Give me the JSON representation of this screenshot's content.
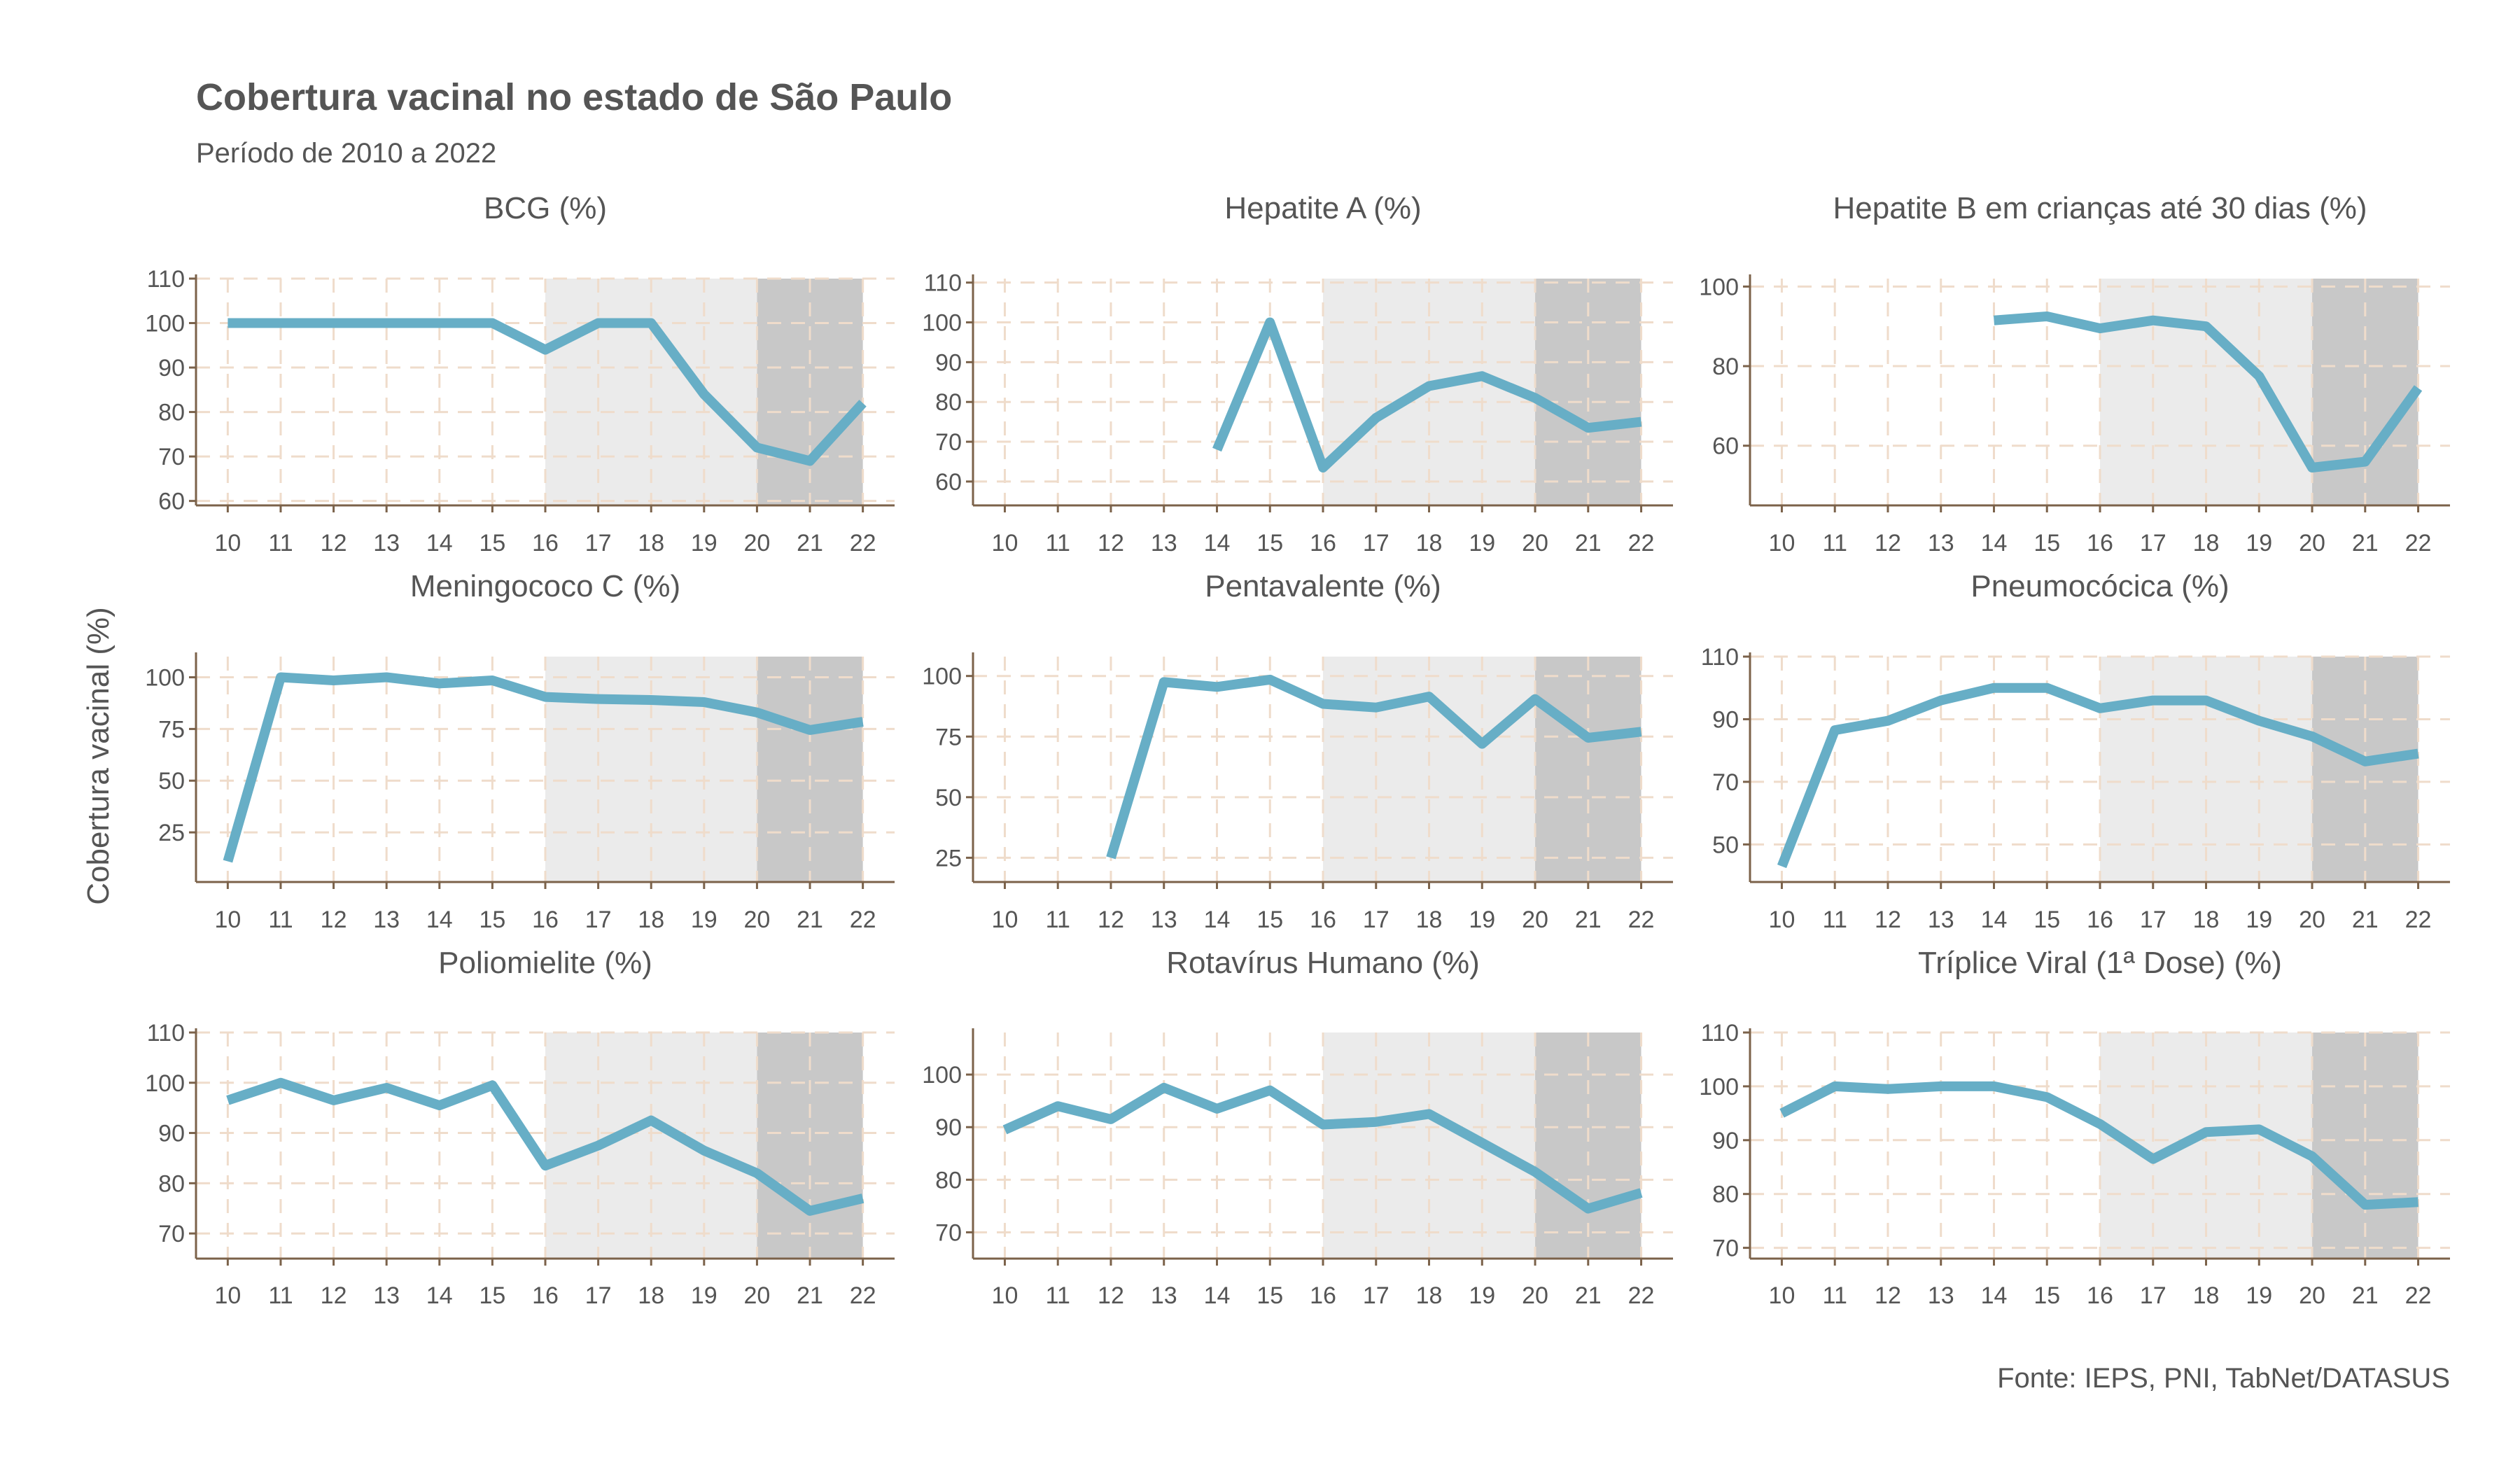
{
  "figure": {
    "title": "Cobertura vacinal no estado de São Paulo",
    "subtitle": "Período de 2010 a 2022",
    "ylabel": "Cobertura vacinal (%)",
    "caption": "Fonte: IEPS, PNI, TabNet/DATASUS"
  },
  "colors": {
    "line": "#67AEC6",
    "shade_light": "#EBEBEB",
    "shade_dark": "#C8C8C8",
    "grid": "#EFDCCB",
    "axis": "#7B624A",
    "text": "#555555"
  },
  "chart_data": [
    {
      "type": "line",
      "title": "BCG (%)",
      "x": [
        10,
        11,
        12,
        13,
        14,
        15,
        16,
        17,
        18,
        19,
        20,
        21,
        22
      ],
      "xticks": [
        "10",
        "11",
        "12",
        "13",
        "14",
        "15",
        "16",
        "17",
        "18",
        "19",
        "20",
        "21",
        "22"
      ],
      "values": [
        100,
        100,
        100,
        100,
        100,
        100,
        94,
        100,
        100,
        84,
        72,
        69,
        82
      ],
      "ylim": [
        59,
        110
      ],
      "yticks": [
        60,
        70,
        80,
        90,
        100,
        110
      ],
      "shaded": [
        {
          "from": 16,
          "to": 20,
          "tone": "light"
        },
        {
          "from": 20,
          "to": 22,
          "tone": "dark"
        }
      ]
    },
    {
      "type": "line",
      "title": "Hepatite A (%)",
      "x": [
        10,
        11,
        12,
        13,
        14,
        15,
        16,
        17,
        18,
        19,
        20,
        21,
        22
      ],
      "xticks": [
        "10",
        "11",
        "12",
        "13",
        "14",
        "15",
        "16",
        "17",
        "18",
        "19",
        "20",
        "21",
        "22"
      ],
      "values": [
        null,
        null,
        null,
        null,
        68,
        100,
        63.5,
        76,
        84,
        86.5,
        81,
        73.5,
        75
      ],
      "ylim": [
        54,
        111
      ],
      "yticks": [
        60,
        70,
        80,
        90,
        100,
        110
      ],
      "shaded": [
        {
          "from": 16,
          "to": 20,
          "tone": "light"
        },
        {
          "from": 20,
          "to": 22,
          "tone": "dark"
        }
      ]
    },
    {
      "type": "line",
      "title": "Hepatite B em crianças até 30 dias (%)",
      "x": [
        10,
        11,
        12,
        13,
        14,
        15,
        16,
        17,
        18,
        19,
        20,
        21,
        22
      ],
      "xticks": [
        "10",
        "11",
        "12",
        "13",
        "14",
        "15",
        "16",
        "17",
        "18",
        "19",
        "20",
        "21",
        "22"
      ],
      "values": [
        null,
        null,
        null,
        null,
        91.5,
        92.5,
        89.5,
        91.5,
        90,
        77.5,
        54.5,
        56,
        74.5
      ],
      "ylim": [
        45,
        102
      ],
      "yticks": [
        60,
        80,
        100
      ],
      "shaded": [
        {
          "from": 16,
          "to": 20,
          "tone": "light"
        },
        {
          "from": 20,
          "to": 22,
          "tone": "dark"
        }
      ]
    },
    {
      "type": "line",
      "title": "Meningococo C (%)",
      "x": [
        10,
        11,
        12,
        13,
        14,
        15,
        16,
        17,
        18,
        19,
        20,
        21,
        22
      ],
      "xticks": [
        "10",
        "11",
        "12",
        "13",
        "14",
        "15",
        "16",
        "17",
        "18",
        "19",
        "20",
        "21",
        "22"
      ],
      "values": [
        11,
        100,
        98.5,
        100,
        97,
        98.5,
        90.5,
        89.5,
        89,
        88,
        83,
        74.5,
        78.5
      ],
      "ylim": [
        1,
        110
      ],
      "yticks": [
        25,
        50,
        75,
        100
      ],
      "shaded": [
        {
          "from": 16,
          "to": 20,
          "tone": "light"
        },
        {
          "from": 20,
          "to": 22,
          "tone": "dark"
        }
      ]
    },
    {
      "type": "line",
      "title": "Pentavalente (%)",
      "x": [
        10,
        11,
        12,
        13,
        14,
        15,
        16,
        17,
        18,
        19,
        20,
        21,
        22
      ],
      "xticks": [
        "10",
        "11",
        "12",
        "13",
        "14",
        "15",
        "16",
        "17",
        "18",
        "19",
        "20",
        "21",
        "22"
      ],
      "values": [
        null,
        null,
        25,
        97.5,
        95.5,
        98.5,
        88.5,
        87,
        91.5,
        72,
        90.5,
        74.5,
        77
      ],
      "ylim": [
        15,
        108
      ],
      "yticks": [
        25,
        50,
        75,
        100
      ],
      "shaded": [
        {
          "from": 16,
          "to": 20,
          "tone": "light"
        },
        {
          "from": 20,
          "to": 22,
          "tone": "dark"
        }
      ]
    },
    {
      "type": "line",
      "title": "Pneumocócica (%)",
      "x": [
        10,
        11,
        12,
        13,
        14,
        15,
        16,
        17,
        18,
        19,
        20,
        21,
        22
      ],
      "xticks": [
        "10",
        "11",
        "12",
        "13",
        "14",
        "15",
        "16",
        "17",
        "18",
        "19",
        "20",
        "21",
        "22"
      ],
      "values": [
        43,
        86.5,
        89.5,
        96,
        100,
        100,
        93.5,
        96,
        96,
        89.5,
        84.5,
        76.5,
        79
      ],
      "ylim": [
        38,
        110
      ],
      "yticks": [
        50,
        70,
        90,
        110
      ],
      "shaded": [
        {
          "from": 16,
          "to": 20,
          "tone": "light"
        },
        {
          "from": 20,
          "to": 22,
          "tone": "dark"
        }
      ]
    },
    {
      "type": "line",
      "title": "Poliomielite (%)",
      "x": [
        10,
        11,
        12,
        13,
        14,
        15,
        16,
        17,
        18,
        19,
        20,
        21,
        22
      ],
      "xticks": [
        "10",
        "11",
        "12",
        "13",
        "14",
        "15",
        "16",
        "17",
        "18",
        "19",
        "20",
        "21",
        "22"
      ],
      "values": [
        96.5,
        100,
        96.5,
        99,
        95.5,
        99.5,
        83.5,
        87.5,
        92.5,
        86.5,
        82,
        74.5,
        77
      ],
      "ylim": [
        65,
        110
      ],
      "yticks": [
        70,
        80,
        90,
        100,
        110
      ],
      "shaded": [
        {
          "from": 16,
          "to": 20,
          "tone": "light"
        },
        {
          "from": 20,
          "to": 22,
          "tone": "dark"
        }
      ]
    },
    {
      "type": "line",
      "title": "Rotavírus Humano (%)",
      "x": [
        10,
        11,
        12,
        13,
        14,
        15,
        16,
        17,
        18,
        19,
        20,
        21,
        22
      ],
      "xticks": [
        "10",
        "11",
        "12",
        "13",
        "14",
        "15",
        "16",
        "17",
        "18",
        "19",
        "20",
        "21",
        "22"
      ],
      "values": [
        89.5,
        94,
        91.5,
        97.5,
        93.5,
        97,
        90.5,
        91,
        92.5,
        87,
        81.5,
        74.5,
        77.5
      ],
      "ylim": [
        65,
        108
      ],
      "yticks": [
        70,
        80,
        90,
        100
      ],
      "shaded": [
        {
          "from": 16,
          "to": 20,
          "tone": "light"
        },
        {
          "from": 20,
          "to": 22,
          "tone": "dark"
        }
      ]
    },
    {
      "type": "line",
      "title": "Tríplice Viral (1ª Dose) (%)",
      "x": [
        10,
        11,
        12,
        13,
        14,
        15,
        16,
        17,
        18,
        19,
        20,
        21,
        22
      ],
      "xticks": [
        "10",
        "11",
        "12",
        "13",
        "14",
        "15",
        "16",
        "17",
        "18",
        "19",
        "20",
        "21",
        "22"
      ],
      "values": [
        95,
        100,
        99.5,
        100,
        100,
        98,
        93,
        86.5,
        91.5,
        92,
        87,
        78,
        78.5
      ],
      "ylim": [
        68,
        110
      ],
      "yticks": [
        70,
        80,
        90,
        100,
        110
      ],
      "shaded": [
        {
          "from": 16,
          "to": 20,
          "tone": "light"
        },
        {
          "from": 20,
          "to": 22,
          "tone": "dark"
        }
      ]
    }
  ]
}
